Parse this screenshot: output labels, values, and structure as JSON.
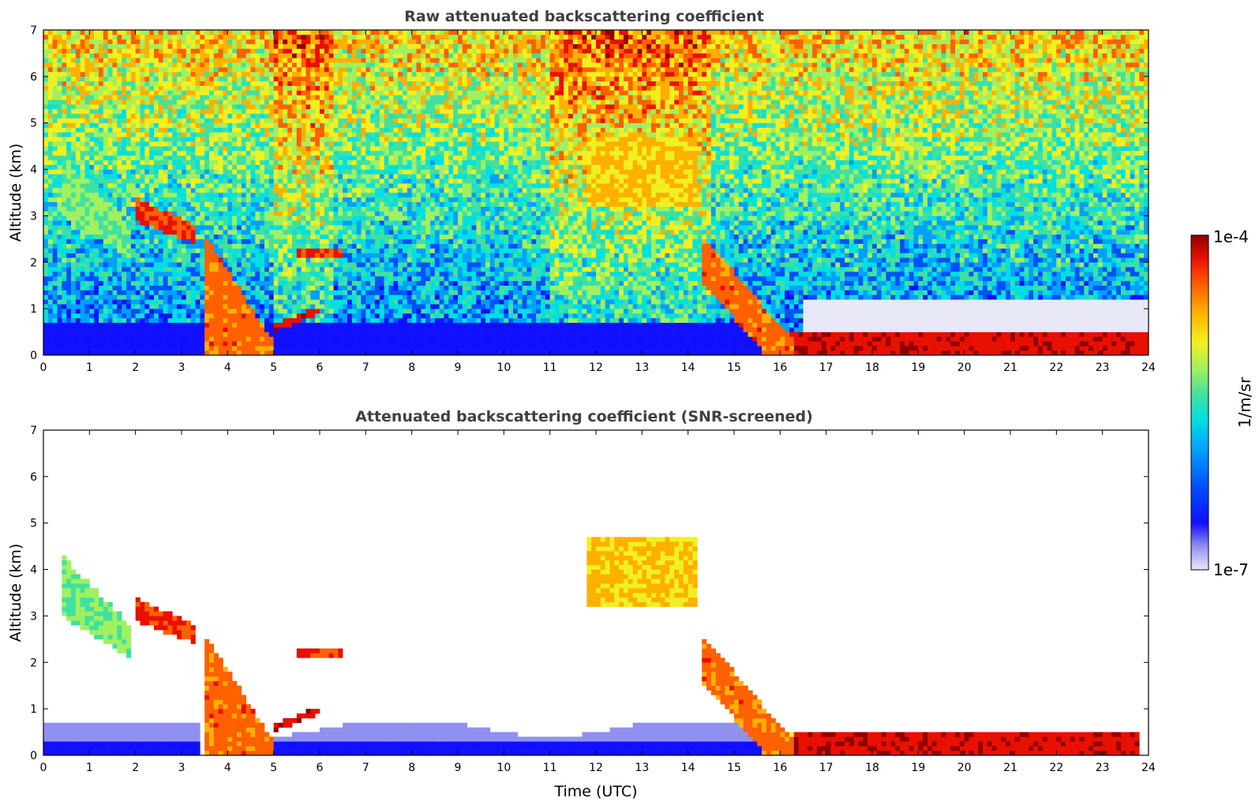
{
  "chart_data": [
    {
      "type": "heatmap",
      "title": "Raw attenuated backscattering coefficient",
      "xlabel": "",
      "ylabel": "Altitude (km)",
      "xlim": [
        0,
        24
      ],
      "ylim": [
        0,
        7
      ],
      "x_ticks": [
        "0",
        "1",
        "2",
        "3",
        "4",
        "5",
        "6",
        "7",
        "8",
        "9",
        "10",
        "11",
        "12",
        "13",
        "14",
        "15",
        "16",
        "17",
        "18",
        "19",
        "20",
        "21",
        "22",
        "23",
        "24"
      ],
      "y_ticks": [
        "0",
        "1",
        "2",
        "3",
        "4",
        "5",
        "6",
        "7"
      ],
      "features": [
        {
          "name": "morning-cloud-layer",
          "t": [
            0.4,
            1.9
          ],
          "alt": [
            2.3,
            4.3
          ],
          "level": 0.6
        },
        {
          "name": "descending-cloud",
          "t": [
            2.0,
            3.3
          ],
          "alt": [
            2.5,
            3.4
          ],
          "level": 0.9
        },
        {
          "name": "descending-boundary-layer",
          "t": [
            3.5,
            5.0
          ],
          "alt": [
            0,
            2.6
          ],
          "level": 0.85
        },
        {
          "name": "rising-layer",
          "t": [
            5.0,
            6.0
          ],
          "alt": [
            0.5,
            1.0
          ],
          "level": 0.95
        },
        {
          "name": "thin-layer",
          "t": [
            5.5,
            6.5
          ],
          "alt": [
            2.1,
            2.3
          ],
          "level": 0.9
        },
        {
          "name": "midday-high-cloud",
          "t": [
            11.8,
            14.2
          ],
          "alt": [
            3.2,
            4.7
          ],
          "level": 0.75
        },
        {
          "name": "afternoon-cloud",
          "t": [
            14.3,
            16.3
          ],
          "alt": [
            0.2,
            2.6
          ],
          "level": 0.85
        },
        {
          "name": "evening-surface-layer",
          "t": [
            16.3,
            23.8
          ],
          "alt": [
            0,
            0.5
          ],
          "level": 0.95
        }
      ]
    },
    {
      "type": "heatmap",
      "title": "Attenuated backscattering coefficient (SNR-screened)",
      "xlabel": "Time (UTC)",
      "ylabel": "Altitude (km)",
      "xlim": [
        0,
        24
      ],
      "ylim": [
        0,
        7
      ],
      "x_ticks": [
        "0",
        "1",
        "2",
        "3",
        "4",
        "5",
        "6",
        "7",
        "8",
        "9",
        "10",
        "11",
        "12",
        "13",
        "14",
        "15",
        "16",
        "17",
        "18",
        "19",
        "20",
        "21",
        "22",
        "23",
        "24"
      ],
      "y_ticks": [
        "0",
        "1",
        "2",
        "3",
        "4",
        "5",
        "6",
        "7"
      ]
    }
  ],
  "colorbar": {
    "max_label": "1e-4",
    "min_label": "1e-7",
    "unit_label": "1/m/sr",
    "colors": [
      "#e8e8f8",
      "#9090f0",
      "#1010ff",
      "#0050ff",
      "#00a0ff",
      "#00e0e0",
      "#40e0a0",
      "#a0f060",
      "#f0f020",
      "#ffb000",
      "#ff6000",
      "#e81000",
      "#900000"
    ]
  }
}
